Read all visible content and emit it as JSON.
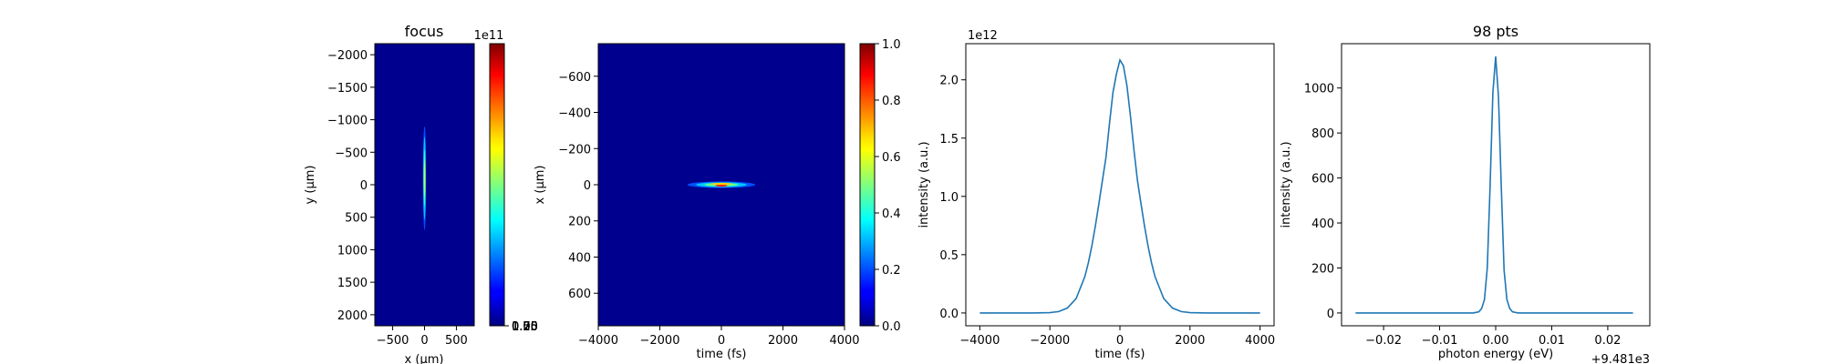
{
  "chart_data": [
    {
      "type": "heatmap",
      "title": "focus",
      "xlabel": "x (μm)",
      "ylabel": "y (μm)",
      "xlim": [
        -780,
        780
      ],
      "ylim": [
        2170,
        -2170
      ],
      "xticks": [
        -500,
        0,
        500
      ],
      "yticks": [
        -2000,
        -1500,
        -1000,
        -500,
        0,
        500,
        1000,
        1500,
        2000
      ],
      "colormap": "jet",
      "background_color": "#00008f",
      "spot": {
        "x_center": 0,
        "y_center": -100,
        "x_halfwidth": 25,
        "y_halfwidth": 800
      },
      "colorbar": {
        "min": 0,
        "max": 195000000000.0,
        "ticks": [
          "0.00",
          "0.25",
          "0.50",
          "0.75",
          "1.00",
          "1.25",
          "1.50",
          "1.75"
        ],
        "tick_values": [
          0,
          0.25,
          0.5,
          0.75,
          1.0,
          1.25,
          1.5,
          1.75
        ],
        "offset_text": "1e11"
      }
    },
    {
      "type": "heatmap",
      "title": "",
      "xlabel": "time (fs)",
      "ylabel": "x (μm)",
      "xlim": [
        -4000,
        4000
      ],
      "ylim": [
        780,
        -780
      ],
      "xticks": [
        -4000,
        -2000,
        0,
        2000,
        4000
      ],
      "yticks": [
        -600,
        -400,
        -200,
        0,
        200,
        400,
        600
      ],
      "colormap": "jet",
      "background_color": "#00008f",
      "spot": {
        "x_center": 0,
        "y_center": 0,
        "x_halfwidth": 1100,
        "y_halfwidth": 18
      },
      "colorbar": {
        "min": 0,
        "max": 1.0,
        "ticks": [
          "0.0",
          "0.2",
          "0.4",
          "0.6",
          "0.8",
          "1.0"
        ],
        "tick_values": [
          0,
          0.2,
          0.4,
          0.6,
          0.8,
          1.0
        ],
        "offset_text": ""
      }
    },
    {
      "type": "line",
      "title": "",
      "xlabel": "time (fs)",
      "ylabel": "intensity (a.u.)",
      "xlim": [
        -4400,
        4400
      ],
      "ylim": [
        -0.11,
        2.31
      ],
      "xticks": [
        -4000,
        -2000,
        0,
        2000,
        4000
      ],
      "yticks": [
        0.0,
        0.5,
        1.0,
        1.5,
        2.0
      ],
      "ytick_labels": [
        "0.0",
        "0.5",
        "1.0",
        "1.5",
        "2.0"
      ],
      "offset_text": "1e12",
      "color": "#1f77b4",
      "series": [
        {
          "x": [
            -4000,
            -3500,
            -3000,
            -2500,
            -2000,
            -1750,
            -1500,
            -1250,
            -1000,
            -900,
            -800,
            -700,
            -600,
            -500,
            -400,
            -300,
            -200,
            -100,
            0,
            100,
            200,
            300,
            400,
            500,
            600,
            700,
            800,
            900,
            1000,
            1250,
            1500,
            1750,
            2000,
            2500,
            3000,
            3500,
            4000
          ],
          "y": [
            0,
            0,
            0,
            0.0001,
            0.003,
            0.012,
            0.042,
            0.124,
            0.313,
            0.432,
            0.578,
            0.749,
            0.939,
            1.137,
            1.332,
            1.62,
            1.89,
            2.05,
            2.17,
            2.12,
            1.95,
            1.69,
            1.4,
            1.137,
            0.939,
            0.749,
            0.578,
            0.432,
            0.313,
            0.124,
            0.042,
            0.012,
            0.003,
            0.0001,
            0,
            0,
            0
          ]
        }
      ]
    },
    {
      "type": "line",
      "title": "98 pts",
      "xlabel": "photon energy (eV)",
      "ylabel": "intensity (a.u.)",
      "xlim": [
        -0.0275,
        0.0275
      ],
      "ylim": [
        -57,
        1197
      ],
      "xticks": [
        -0.02,
        -0.01,
        0.0,
        0.01,
        0.02
      ],
      "xtick_labels": [
        "−0.02",
        "−0.01",
        "0.00",
        "0.01",
        "0.02"
      ],
      "yticks": [
        0,
        200,
        400,
        600,
        800,
        1000
      ],
      "ytick_labels": [
        "0",
        "200",
        "400",
        "600",
        "800",
        "1000"
      ],
      "offset_text": "+9.481e3",
      "color": "#1f77b4",
      "series": [
        {
          "x": [
            -0.025,
            -0.004,
            -0.003,
            -0.0025,
            -0.002,
            -0.0015,
            -0.001,
            -0.0005,
            0.0,
            0.0005,
            0.001,
            0.0015,
            0.002,
            0.0025,
            0.003,
            0.004,
            0.0245
          ],
          "y": [
            0,
            0,
            5,
            20,
            60,
            200,
            560,
            980,
            1140,
            960,
            560,
            190,
            60,
            20,
            5,
            0,
            0
          ]
        }
      ]
    }
  ]
}
